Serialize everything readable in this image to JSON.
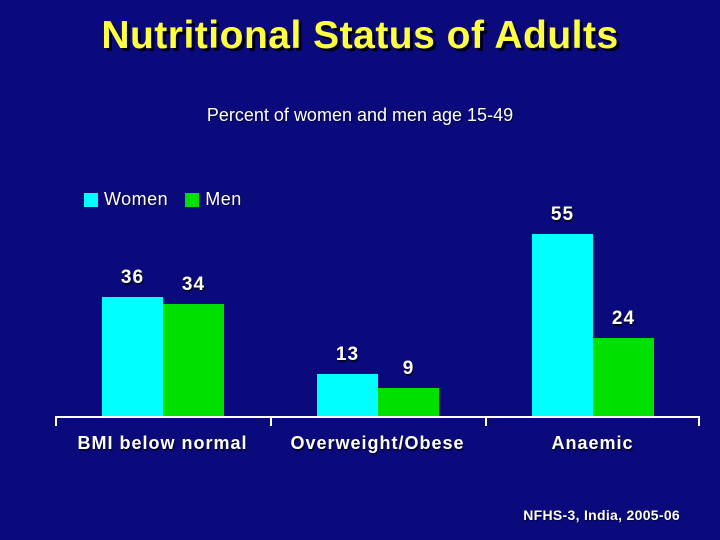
{
  "slide": {
    "title": "Nutritional Status of Adults",
    "subtitle": "Percent of women and men age 15-49",
    "source": "NFHS-3, India, 2005-06",
    "background_color": "#0a0a7d",
    "title_color": "#ffff42"
  },
  "chart_data": {
    "type": "bar",
    "title": "Nutritional Status of Adults",
    "subtitle": "Percent of women and men age 15-49",
    "unit": "percent",
    "categories": [
      "BMI below normal",
      "Overweight/Obese",
      "Anaemic"
    ],
    "series": [
      {
        "name": "Women",
        "color": "#00ffff",
        "values": [
          36,
          13,
          55
        ]
      },
      {
        "name": "Men",
        "color": "#00e000",
        "values": [
          34,
          9,
          24
        ]
      }
    ],
    "ylim": [
      0,
      58
    ],
    "grid": false,
    "axis_color": "#ffffff",
    "value_labels": true,
    "legend_position": "top-left",
    "source": "NFHS-3, India, 2005-06"
  }
}
